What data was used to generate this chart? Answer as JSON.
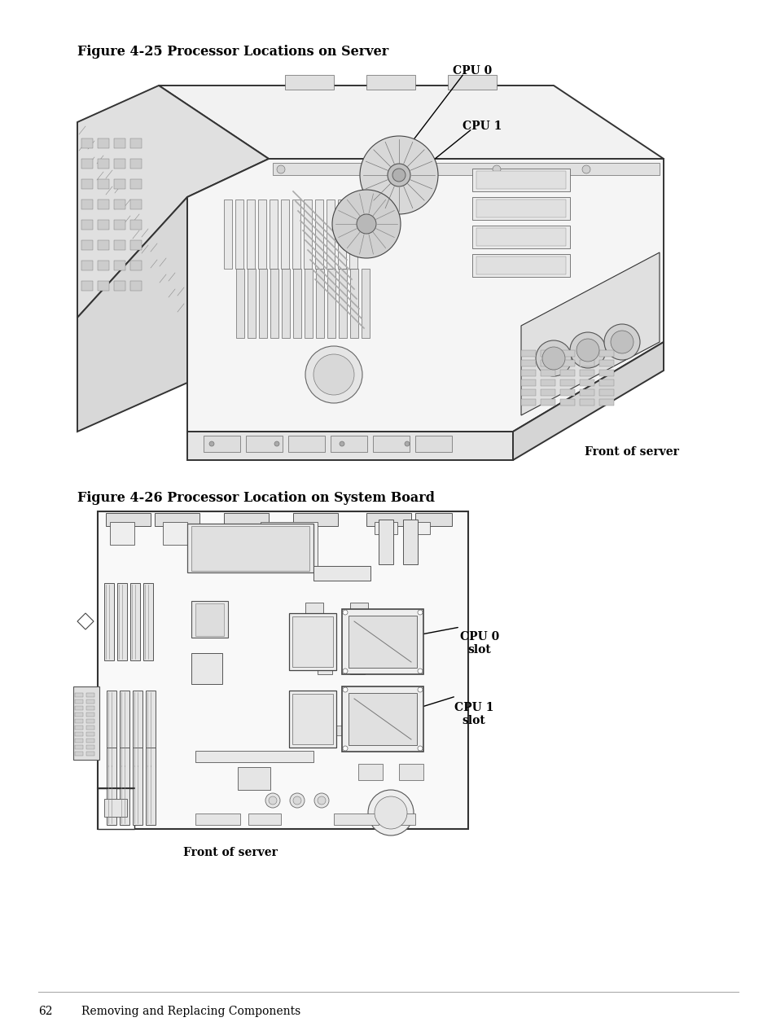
{
  "bg_color": "#ffffff",
  "fig_title1": "Figure 4-25 Processor Locations on Server",
  "fig_title2": "Figure 4-26 Processor Location on System Board",
  "footer_page": "62",
  "footer_text": "Removing and Replacing Components",
  "front_of_server1": "Front of server",
  "front_of_server2": "Front of server",
  "cpu0_label": "CPU 0",
  "cpu1_label": "CPU 1",
  "cpu0_slot_label": "CPU 0\nslot",
  "cpu1_slot_label": "CPU 1\nslot",
  "title_fontsize": 11.5,
  "label_fontsize": 10,
  "footer_fontsize": 10,
  "body_ec": "#333333",
  "light_fill": "#f8f8f8",
  "mid_fill": "#e8e8e8",
  "dark_fill": "#d0d0d0",
  "text_color": "#000000",
  "lw_heavy": 1.4,
  "lw_mid": 0.8,
  "lw_light": 0.5
}
